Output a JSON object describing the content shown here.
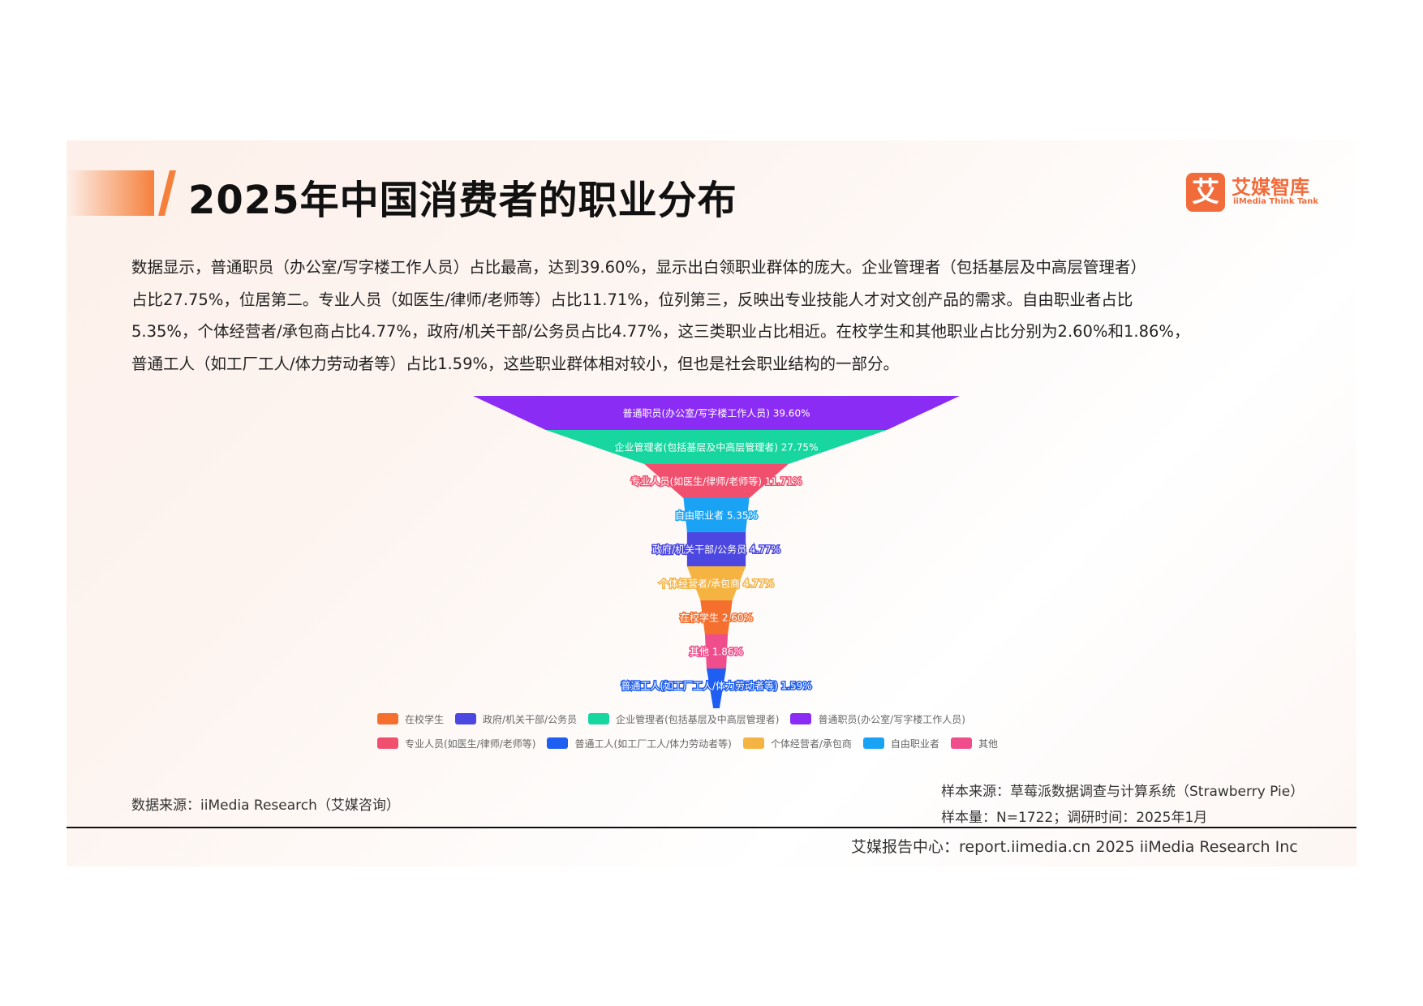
{
  "title": "2025年中国消费者的职业分布",
  "logo": {
    "mark": "艾",
    "name": "艾媒智库",
    "sub": "iiMedia Think Tank"
  },
  "description": [
    "数据显示，普通职员（办公室/写字楼工作人员）占比最高，达到39.60%，显示出白领职业群体的庞大。企业管理者（包括基层及中高层管理者）",
    "占比27.75%，位居第二。专业人员（如医生/律师/老师等）占比11.71%，位列第三，反映出专业技能人才对文创产品的需求。自由职业者占比",
    "5.35%，个体经营者/承包商占比4.77%，政府/机关干部/公务员占比4.77%，这三类职业占比相近。在校学生和其他职业占比分别为2.60%和1.86%，",
    "普通工人（如工厂工人/体力劳动者等）占比1.59%，这些职业群体相对较小，但也是社会职业结构的一部分。"
  ],
  "chart_data": {
    "type": "funnel",
    "unit": "%",
    "stages": [
      {
        "name": "普通职员(办公室/写字楼工作人员)",
        "value": 39.6,
        "label": "普通职员(办公室/写字楼工作人员) 39.60%",
        "color": "#8b2cf5"
      },
      {
        "name": "企业管理者(包括基层及中高层管理者)",
        "value": 27.75,
        "label": "企业管理者(包括基层及中高层管理者) 27.75%",
        "color": "#17d6a0"
      },
      {
        "name": "专业人员(如医生/律师/老师等)",
        "value": 11.71,
        "label": "专业人员(如医生/律师/老师等) 11.71%",
        "color": "#f0506e"
      },
      {
        "name": "自由职业者",
        "value": 5.35,
        "label": "自由职业者 5.35%",
        "color": "#1aa3f5"
      },
      {
        "name": "政府/机关干部/公务员",
        "value": 4.77,
        "label": "政府/机关干部/公务员 4.77%",
        "color": "#4b47e0"
      },
      {
        "name": "个体经营者/承包商",
        "value": 4.77,
        "label": "个体经营者/承包商 4.77%",
        "color": "#f5b342"
      },
      {
        "name": "在校学生",
        "value": 2.6,
        "label": "在校学生 2.60%",
        "color": "#f5702e"
      },
      {
        "name": "其他",
        "value": 1.86,
        "label": "其他 1.86%",
        "color": "#f04d8c"
      },
      {
        "name": "普通工人(如工厂工人/体力劳动者等)",
        "value": 1.59,
        "label": "普通工人(如工厂工人/体力劳动者等) 1.59%",
        "color": "#1e5ef0"
      }
    ],
    "legend": [
      [
        {
          "label": "在校学生",
          "color": "#f5702e"
        },
        {
          "label": "政府/机关干部/公务员",
          "color": "#4b47e0"
        },
        {
          "label": "企业管理者(包括基层及中高层管理者)",
          "color": "#17d6a0"
        },
        {
          "label": "普通职员(办公室/写字楼工作人员)",
          "color": "#8b2cf5"
        }
      ],
      [
        {
          "label": "专业人员(如医生/律师/老师等)",
          "color": "#f0506e"
        },
        {
          "label": "普通工人(如工厂工人/体力劳动者等)",
          "color": "#1e5ef0"
        },
        {
          "label": "个体经营者/承包商",
          "color": "#f5b342"
        },
        {
          "label": "自由职业者",
          "color": "#1aa3f5"
        },
        {
          "label": "其他",
          "color": "#f04d8c"
        }
      ]
    ]
  },
  "source": "数据来源：iiMedia Research（艾媒咨询）",
  "sample_source": "样本来源：草莓派数据调查与计算系统（Strawberry Pie）",
  "sample_size": "样本量：N=1722；调研时间：2025年1月",
  "footer": "艾媒报告中心：report.iimedia.cn 2025 iiMedia Research Inc"
}
